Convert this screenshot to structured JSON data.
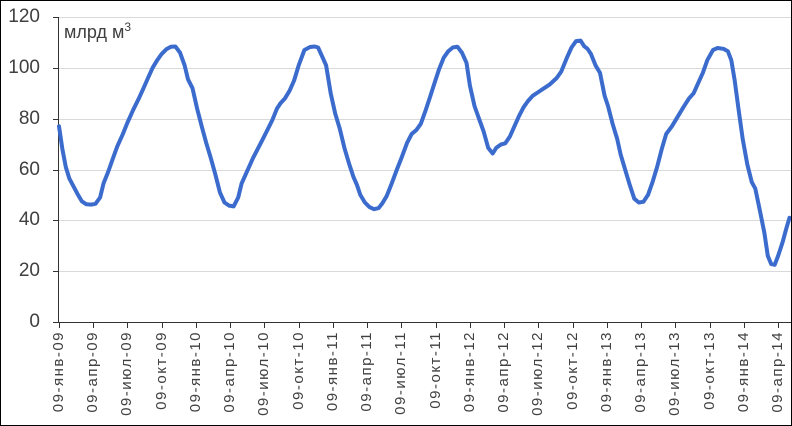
{
  "labels": {
    "unit_text": "млрд м",
    "unit_sup": "3"
  },
  "colors": {
    "line": "#3b6ccd",
    "axis": "#333333",
    "grid": "#d9d9d9",
    "tick_text": "#404040"
  },
  "chart_data": {
    "type": "line",
    "title": "",
    "unit_label": "млрд м³",
    "ylim": [
      0,
      120
    ],
    "y_ticks": [
      120,
      100,
      80,
      60,
      40,
      20,
      0
    ],
    "grid": "horizontal",
    "legend": "none",
    "x_tick_labels": [
      "09-янв-09",
      "09-апр-09",
      "09-июл-09",
      "09-окт-09",
      "09-янв-10",
      "09-апр-10",
      "09-июл-10",
      "09-окт-10",
      "09-янв-11",
      "09-апр-11",
      "09-июл-11",
      "09-окт-11",
      "09-янв-12",
      "09-апр-12",
      "09-июл-12",
      "09-окт-12",
      "09-янв-13",
      "09-апр-13",
      "09-июл-13",
      "09-окт-13",
      "09-янв-14",
      "09-апр-14"
    ],
    "x_unit": "months since 09-янв-09",
    "points": [
      [
        0,
        77
      ],
      [
        0.3,
        68
      ],
      [
        0.6,
        61
      ],
      [
        0.9,
        56.5
      ],
      [
        1.2,
        54
      ],
      [
        1.6,
        50.5
      ],
      [
        2,
        47.5
      ],
      [
        2.4,
        46.3
      ],
      [
        2.8,
        46.2
      ],
      [
        3.2,
        46.5
      ],
      [
        3.6,
        49
      ],
      [
        3.9,
        54.5
      ],
      [
        4.3,
        59
      ],
      [
        4.7,
        64
      ],
      [
        5.1,
        69
      ],
      [
        5.6,
        74
      ],
      [
        6,
        78.5
      ],
      [
        6.5,
        83.5
      ],
      [
        7,
        88
      ],
      [
        7.4,
        92
      ],
      [
        7.8,
        96
      ],
      [
        8.2,
        100
      ],
      [
        8.6,
        103
      ],
      [
        9,
        105.5
      ],
      [
        9.4,
        107.3
      ],
      [
        9.8,
        108.3
      ],
      [
        10.2,
        108.4
      ],
      [
        10.6,
        106
      ],
      [
        11,
        101
      ],
      [
        11.3,
        95.5
      ],
      [
        11.7,
        92
      ],
      [
        12.1,
        84
      ],
      [
        12.5,
        77
      ],
      [
        12.9,
        70.5
      ],
      [
        13.3,
        64.5
      ],
      [
        13.7,
        58
      ],
      [
        14.1,
        51
      ],
      [
        14.5,
        47
      ],
      [
        14.9,
        45.8
      ],
      [
        15.3,
        45.5
      ],
      [
        15.7,
        49
      ],
      [
        16,
        54.5
      ],
      [
        16.5,
        59.5
      ],
      [
        17,
        64.5
      ],
      [
        17.4,
        68
      ],
      [
        17.8,
        71.5
      ],
      [
        18.2,
        75
      ],
      [
        18.7,
        79.5
      ],
      [
        19.1,
        84
      ],
      [
        19.4,
        86
      ],
      [
        19.8,
        88
      ],
      [
        20.2,
        91
      ],
      [
        20.6,
        95
      ],
      [
        21,
        101
      ],
      [
        21.5,
        107
      ],
      [
        22,
        108.2
      ],
      [
        22.4,
        108.4
      ],
      [
        22.7,
        108
      ],
      [
        23.1,
        104
      ],
      [
        23.4,
        101
      ],
      [
        23.8,
        90
      ],
      [
        24.2,
        82
      ],
      [
        24.6,
        76
      ],
      [
        25,
        68.5
      ],
      [
        25.4,
        62.5
      ],
      [
        25.8,
        57
      ],
      [
        26.1,
        54
      ],
      [
        26.4,
        50
      ],
      [
        26.8,
        47
      ],
      [
        27.2,
        45.2
      ],
      [
        27.6,
        44.4
      ],
      [
        28,
        44.8
      ],
      [
        28.3,
        46.5
      ],
      [
        28.7,
        49.5
      ],
      [
        29.1,
        54
      ],
      [
        29.6,
        60
      ],
      [
        30,
        64.5
      ],
      [
        30.5,
        70.5
      ],
      [
        30.9,
        74
      ],
      [
        31.3,
        75.5
      ],
      [
        31.7,
        78
      ],
      [
        32.1,
        83
      ],
      [
        32.5,
        88.5
      ],
      [
        32.9,
        94
      ],
      [
        33.3,
        99.5
      ],
      [
        33.7,
        104
      ],
      [
        34.1,
        106.5
      ],
      [
        34.5,
        108
      ],
      [
        34.9,
        108.3
      ],
      [
        35.3,
        106
      ],
      [
        35.7,
        102
      ],
      [
        36,
        93
      ],
      [
        36.4,
        85
      ],
      [
        36.8,
        80
      ],
      [
        37.2,
        75
      ],
      [
        37.6,
        68.5
      ],
      [
        38,
        66.3
      ],
      [
        38.3,
        68.5
      ],
      [
        38.7,
        69.8
      ],
      [
        39.1,
        70.3
      ],
      [
        39.5,
        73
      ],
      [
        39.9,
        77
      ],
      [
        40.3,
        81
      ],
      [
        40.7,
        84.5
      ],
      [
        41.1,
        87
      ],
      [
        41.5,
        89
      ],
      [
        42,
        90.5
      ],
      [
        42.5,
        92
      ],
      [
        43,
        93.5
      ],
      [
        43.6,
        96
      ],
      [
        44,
        98.5
      ],
      [
        44.5,
        104
      ],
      [
        44.9,
        108
      ],
      [
        45.3,
        110.5
      ],
      [
        45.7,
        110.7
      ],
      [
        46,
        108.5
      ],
      [
        46.3,
        107.5
      ],
      [
        46.6,
        105.5
      ],
      [
        47,
        101
      ],
      [
        47.4,
        98
      ],
      [
        47.8,
        89
      ],
      [
        48.1,
        85
      ],
      [
        48.5,
        78
      ],
      [
        48.9,
        72
      ],
      [
        49.2,
        66
      ],
      [
        49.6,
        60
      ],
      [
        50,
        54
      ],
      [
        50.4,
        48.5
      ],
      [
        50.8,
        47
      ],
      [
        51.2,
        47.3
      ],
      [
        51.6,
        50
      ],
      [
        52,
        55
      ],
      [
        52.4,
        61
      ],
      [
        52.8,
        68
      ],
      [
        53.2,
        74
      ],
      [
        53.7,
        77
      ],
      [
        54.1,
        80
      ],
      [
        54.7,
        84.5
      ],
      [
        55.2,
        88
      ],
      [
        55.6,
        90
      ],
      [
        56,
        94
      ],
      [
        56.4,
        98
      ],
      [
        56.8,
        103
      ],
      [
        57.3,
        107
      ],
      [
        57.7,
        107.8
      ],
      [
        58.2,
        107.5
      ],
      [
        58.6,
        106.5
      ],
      [
        58.9,
        103
      ],
      [
        59.2,
        95
      ],
      [
        59.5,
        85
      ],
      [
        59.9,
        72
      ],
      [
        60.3,
        62
      ],
      [
        60.7,
        55
      ],
      [
        61,
        52.5
      ],
      [
        61.4,
        44
      ],
      [
        61.8,
        35
      ],
      [
        62.1,
        26
      ],
      [
        62.4,
        22.8
      ],
      [
        62.7,
        22.5
      ],
      [
        63,
        26
      ],
      [
        63.4,
        31.5
      ],
      [
        63.7,
        36.5
      ],
      [
        64,
        41
      ]
    ]
  }
}
